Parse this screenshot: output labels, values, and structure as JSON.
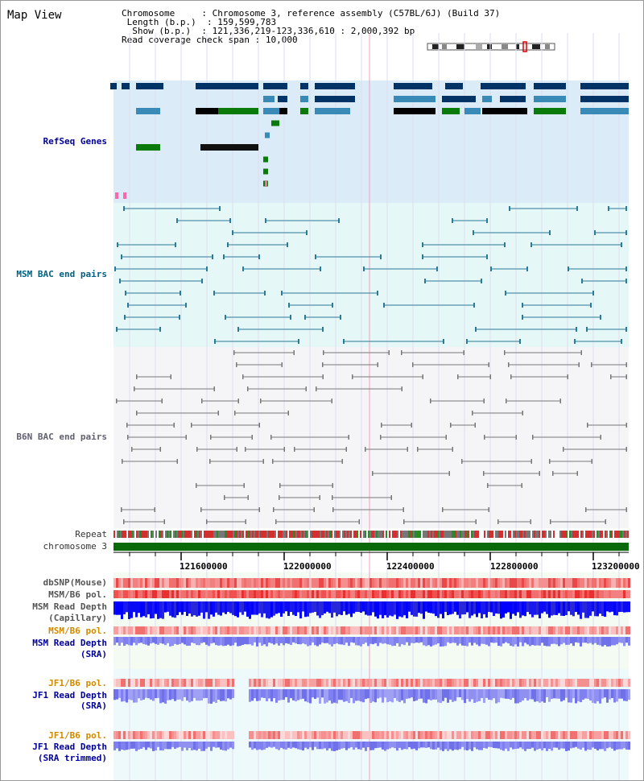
{
  "title": "Map View",
  "header": {
    "chromosome_key": "Chromosome",
    "chromosome_val": "Chromosome 3, reference assembly (C57BL/6J) (Build 37)",
    "length_key": "Length (b.p.)",
    "length_val": "159,599,783",
    "show_key": "Show (b.p.)",
    "show_val": "121,336,219-123,336,610 : 2,000,392 bp",
    "read_key": "Read coverage check span",
    "read_val": "10,000"
  },
  "tracks": {
    "refseq": "RefSeq Genes",
    "msm_bac": "MSM BAC end pairs",
    "b6n_bac": "B6N BAC end pairs",
    "repeat": "Repeat",
    "chromosome": "chromosome 3",
    "dbsnp": "dbSNP(Mouse)",
    "msm_b6_pol_1": "MSM/B6 pol.",
    "msm_depth_cap_1": "MSM Read Depth",
    "msm_depth_cap_2": "(Capillary)",
    "msm_b6_pol_2": "MSM/B6 pol.",
    "msm_depth_sra_1": "MSM Read Depth",
    "msm_depth_sra_2": "(SRA)",
    "jf1_pol_1": "JF1/B6 pol.",
    "jf1_depth_sra_1": "JF1 Read Depth",
    "jf1_depth_sra_2": "(SRA)",
    "jf1_pol_2": "JF1/B6 pol.",
    "jf1_depth_trim_1": "JF1 Read Depth",
    "jf1_depth_trim_2": "(SRA trimmed)"
  },
  "axis": {
    "ticks": [
      "121600000",
      "122000000",
      "122400000",
      "122800000",
      "123200000"
    ]
  },
  "colors": {
    "refseq_bg": "#dcebf8",
    "msm_bg": "#e6f7f7",
    "b6n_bg": "#f5f5f8",
    "gene_dark": "#003366",
    "gene_mid": "#3a8ab8",
    "gene_green": "#0a7a0a",
    "msm_line": "#2a7a9a",
    "b6n_line": "#777777",
    "chromosome_bar": "#0a6a0a",
    "snp": "#f07070",
    "depth_dark": "#1020e0",
    "depth_light": "#8080f0"
  }
}
